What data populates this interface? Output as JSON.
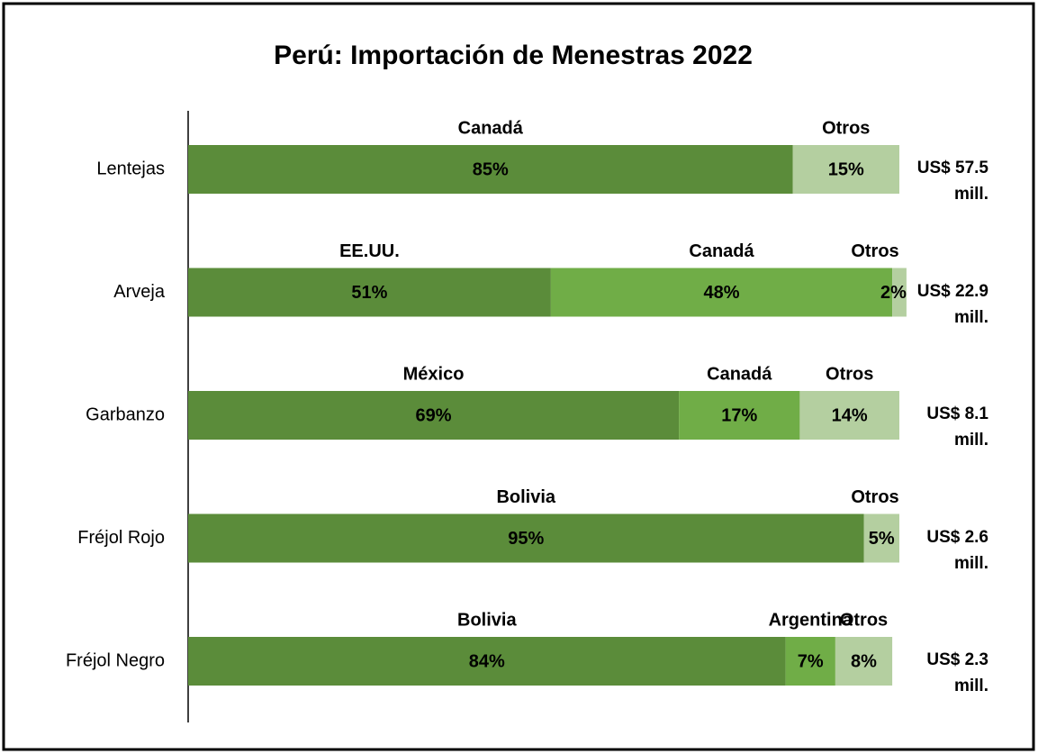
{
  "chart_data": {
    "type": "stacked_bar_100",
    "orientation": "horizontal",
    "title": "Perú: Importación de Menestras 2022",
    "xlim": [
      0,
      100
    ],
    "rows": [
      {
        "category": "Lentejas",
        "total_label": "US$ 57.5 mill.",
        "segments": [
          {
            "name": "Canadá",
            "value": 85,
            "value_label": "85%",
            "color": "#5b8c3a"
          },
          {
            "name": "Otros",
            "value": 15,
            "value_label": "15%",
            "color": "#b4cfa0"
          }
        ]
      },
      {
        "category": "Arveja",
        "total_label": "US$ 22.9 mill.",
        "segments": [
          {
            "name": "EE.UU.",
            "value": 51,
            "value_label": "51%",
            "color": "#5b8c3a"
          },
          {
            "name": "Canadá",
            "value": 48,
            "value_label": "48%",
            "color": "#70ad47"
          },
          {
            "name": "Otros",
            "value": 2,
            "value_label": "2%",
            "color": "#b4cfa0"
          }
        ]
      },
      {
        "category": "Garbanzo",
        "total_label": "US$ 8.1 mill.",
        "segments": [
          {
            "name": "México",
            "value": 69,
            "value_label": "69%",
            "color": "#5b8c3a"
          },
          {
            "name": "Canadá",
            "value": 17,
            "value_label": "17%",
            "color": "#70ad47"
          },
          {
            "name": "Otros",
            "value": 14,
            "value_label": "14%",
            "color": "#b4cfa0"
          }
        ]
      },
      {
        "category": "Fréjol Rojo",
        "total_label": "US$ 2.6 mill.",
        "segments": [
          {
            "name": "Bolivia",
            "value": 95,
            "value_label": "95%",
            "color": "#5b8c3a"
          },
          {
            "name": "Otros",
            "value": 5,
            "value_label": "5%",
            "color": "#b4cfa0"
          }
        ]
      },
      {
        "category": "Fréjol Negro",
        "total_label": "US$ 2.3 mill.",
        "segments": [
          {
            "name": "Bolivia",
            "value": 84,
            "value_label": "84%",
            "color": "#5b8c3a"
          },
          {
            "name": "Argentina",
            "value": 7,
            "value_label": "7%",
            "color": "#70ad47"
          },
          {
            "name": "Otros",
            "value": 8,
            "value_label": "8%",
            "color": "#b4cfa0"
          }
        ]
      }
    ]
  }
}
